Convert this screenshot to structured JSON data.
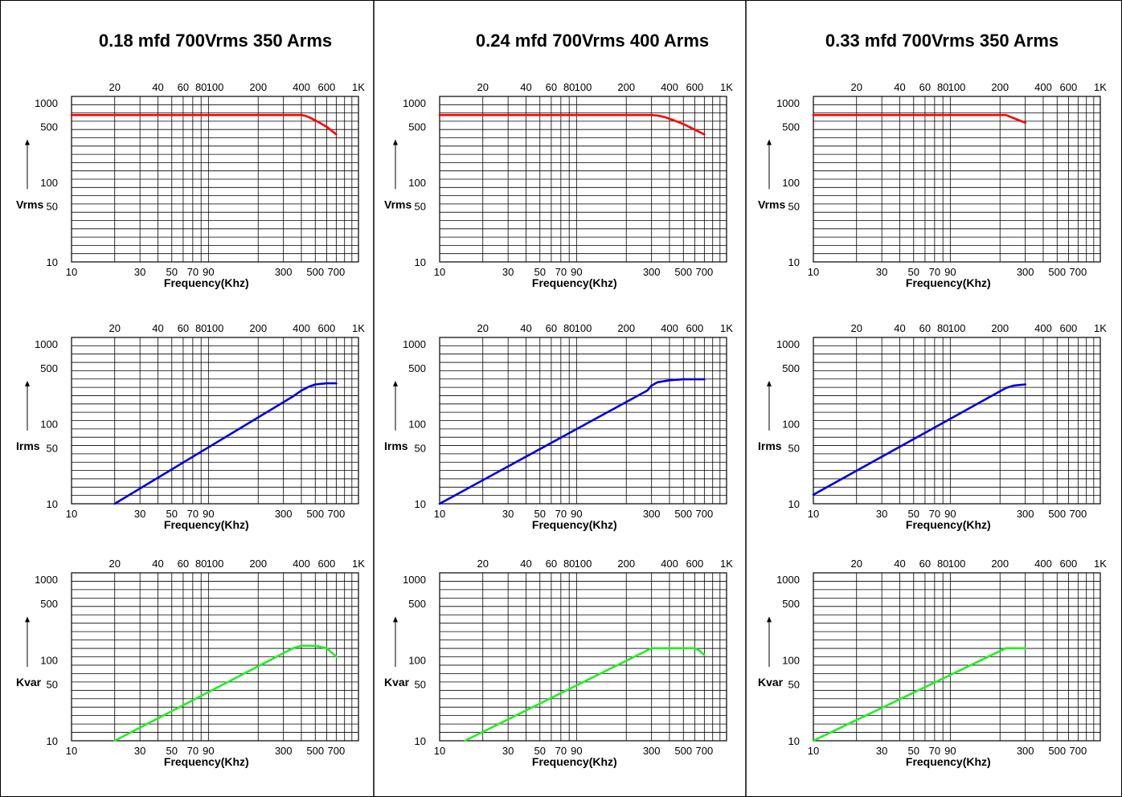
{
  "chart_data": [
    {
      "title": "0.18 mfd 700Vrms 350 Arms",
      "type": "line",
      "x_scale": "log",
      "top_x_ticks": [
        "20",
        "40",
        "60",
        "80",
        "100",
        "200",
        "400",
        "600",
        "1K"
      ],
      "bottom_x_ticks": [
        "10",
        "30",
        "50",
        "70",
        "90",
        "300",
        "500",
        "700"
      ],
      "xlabel": "Frequency(Khz)",
      "y_ticks": [
        "1000",
        "500",
        "100",
        "50",
        "10"
      ],
      "charts": [
        {
          "ylabel": "Vrms",
          "color": "#ff0000",
          "series": [
            {
              "x": [
                10,
                400,
                420,
                450,
                500,
                600,
                700
              ],
              "y": [
                700,
                700,
                690,
                660,
                600,
                500,
                400
              ]
            }
          ]
        },
        {
          "ylabel": "Irms",
          "color": "#0000dd",
          "series": [
            {
              "x": [
                20,
                350,
                400,
                450,
                500,
                600,
                700
              ],
              "y": [
                10,
                220,
                260,
                290,
                310,
                320,
                320
              ]
            }
          ]
        },
        {
          "ylabel": "Kvar",
          "color": "#22ee22",
          "series": [
            {
              "x": [
                20,
                350,
                400,
                500,
                600,
                700
              ],
              "y": [
                10,
                140,
                150,
                150,
                140,
                110
              ]
            }
          ]
        }
      ]
    },
    {
      "title": "0.24 mfd 700Vrms 400 Arms",
      "type": "line",
      "x_scale": "log",
      "top_x_ticks": [
        "20",
        "40",
        "60",
        "80",
        "100",
        "200",
        "400",
        "600",
        "1K"
      ],
      "bottom_x_ticks": [
        "10",
        "30",
        "50",
        "70",
        "90",
        "300",
        "500",
        "700"
      ],
      "xlabel": "Frequency(Khz)",
      "y_ticks": [
        "1000",
        "500",
        "100",
        "50",
        "10"
      ],
      "charts": [
        {
          "ylabel": "Vrms",
          "color": "#ff0000",
          "series": [
            {
              "x": [
                10,
                300,
                330,
                370,
                420,
                500,
                600,
                700
              ],
              "y": [
                700,
                700,
                690,
                660,
                610,
                540,
                460,
                400
              ]
            }
          ]
        },
        {
          "ylabel": "Irms",
          "color": "#0000dd",
          "series": [
            {
              "x": [
                10,
                280,
                300,
                330,
                400,
                500,
                700
              ],
              "y": [
                10,
                260,
                300,
                330,
                350,
                360,
                360
              ]
            }
          ]
        },
        {
          "ylabel": "Kvar",
          "color": "#22ee22",
          "series": [
            {
              "x": [
                15,
                300,
                400,
                600,
                650,
                700
              ],
              "y": [
                10,
                140,
                140,
                140,
                130,
                115
              ]
            }
          ]
        }
      ]
    },
    {
      "title": "0.33 mfd 700Vrms 350 Arms",
      "type": "line",
      "x_scale": "log",
      "top_x_ticks": [
        "20",
        "40",
        "60",
        "80",
        "100",
        "200",
        "400",
        "600",
        "1K"
      ],
      "bottom_x_ticks": [
        "10",
        "30",
        "50",
        "70",
        "90",
        "300",
        "500",
        "700"
      ],
      "xlabel": "Frequency(Khz)",
      "y_ticks": [
        "1000",
        "500",
        "100",
        "50",
        "10"
      ],
      "charts": [
        {
          "ylabel": "Vrms",
          "color": "#ff0000",
          "series": [
            {
              "x": [
                10,
                220,
                300
              ],
              "y": [
                700,
                700,
                560
              ]
            }
          ]
        },
        {
          "ylabel": "Irms",
          "color": "#0000dd",
          "series": [
            {
              "x": [
                10,
                220,
                250,
                300
              ],
              "y": [
                13,
                280,
                300,
                310
              ]
            }
          ]
        },
        {
          "ylabel": "Kvar",
          "color": "#22ee22",
          "series": [
            {
              "x": [
                10,
                220,
                300
              ],
              "y": [
                10,
                140,
                140
              ]
            }
          ]
        }
      ]
    }
  ]
}
